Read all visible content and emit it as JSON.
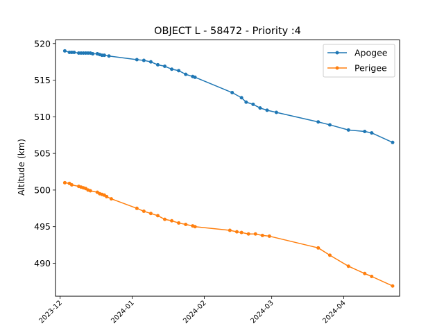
{
  "chart_data": {
    "type": "line",
    "title": "OBJECT L - 58472 - Priority :4",
    "xlabel": "",
    "ylabel": "Altitude (km)",
    "xlim": [
      "2023-11-29",
      "2024-04-25"
    ],
    "ylim": [
      485.5,
      520.5
    ],
    "x_ticks": [
      "2023-12",
      "2024-01",
      "2024-02",
      "2024-03",
      "2024-04"
    ],
    "y_ticks": [
      490,
      495,
      500,
      505,
      510,
      515,
      520
    ],
    "grid": false,
    "legend_position": "top-right",
    "series": [
      {
        "name": "Apogee",
        "color": "#1f77b4",
        "x": [
          "2023-12-03",
          "2023-12-05",
          "2023-12-06",
          "2023-12-07",
          "2023-12-09",
          "2023-12-10",
          "2023-12-11",
          "2023-12-12",
          "2023-12-13",
          "2023-12-14",
          "2023-12-15",
          "2023-12-17",
          "2023-12-18",
          "2023-12-19",
          "2023-12-20",
          "2023-12-22",
          "2024-01-03",
          "2024-01-06",
          "2024-01-09",
          "2024-01-12",
          "2024-01-15",
          "2024-01-18",
          "2024-01-21",
          "2024-01-24",
          "2024-01-27",
          "2024-01-28",
          "2024-02-13",
          "2024-02-17",
          "2024-02-19",
          "2024-02-22",
          "2024-02-25",
          "2024-02-28",
          "2024-03-03",
          "2024-03-21",
          "2024-03-26",
          "2024-04-03",
          "2024-04-10",
          "2024-04-13",
          "2024-04-22"
        ],
        "y": [
          519.0,
          518.8,
          518.8,
          518.8,
          518.7,
          518.7,
          518.7,
          518.7,
          518.7,
          518.7,
          518.6,
          518.6,
          518.5,
          518.4,
          518.4,
          518.3,
          517.8,
          517.7,
          517.5,
          517.1,
          516.9,
          516.5,
          516.3,
          515.8,
          515.5,
          515.4,
          513.3,
          512.6,
          512.0,
          511.7,
          511.2,
          510.9,
          510.6,
          509.3,
          508.9,
          508.2,
          508.0,
          507.8,
          506.5
        ]
      },
      {
        "name": "Perigee",
        "color": "#ff7f0e",
        "x": [
          "2023-12-03",
          "2023-12-05",
          "2023-12-06",
          "2023-12-09",
          "2023-12-10",
          "2023-12-11",
          "2023-12-12",
          "2023-12-13",
          "2023-12-14",
          "2023-12-17",
          "2023-12-18",
          "2023-12-19",
          "2023-12-20",
          "2023-12-21",
          "2023-12-23",
          "2024-01-03",
          "2024-01-06",
          "2024-01-09",
          "2024-01-12",
          "2024-01-15",
          "2024-01-18",
          "2024-01-21",
          "2024-01-24",
          "2024-01-27",
          "2024-01-28",
          "2024-02-12",
          "2024-02-15",
          "2024-02-17",
          "2024-02-20",
          "2024-02-23",
          "2024-02-26",
          "2024-02-29",
          "2024-03-21",
          "2024-03-26",
          "2024-04-03",
          "2024-04-10",
          "2024-04-13",
          "2024-04-22"
        ],
        "y": [
          501.0,
          500.9,
          500.7,
          500.5,
          500.4,
          500.3,
          500.2,
          500.0,
          499.9,
          499.7,
          499.5,
          499.4,
          499.3,
          499.1,
          498.8,
          497.5,
          497.1,
          496.8,
          496.5,
          496.0,
          495.8,
          495.5,
          495.3,
          495.1,
          495.0,
          494.5,
          494.3,
          494.2,
          494.0,
          494.0,
          493.8,
          493.7,
          492.1,
          491.1,
          489.6,
          488.6,
          488.2,
          486.9
        ]
      }
    ]
  }
}
